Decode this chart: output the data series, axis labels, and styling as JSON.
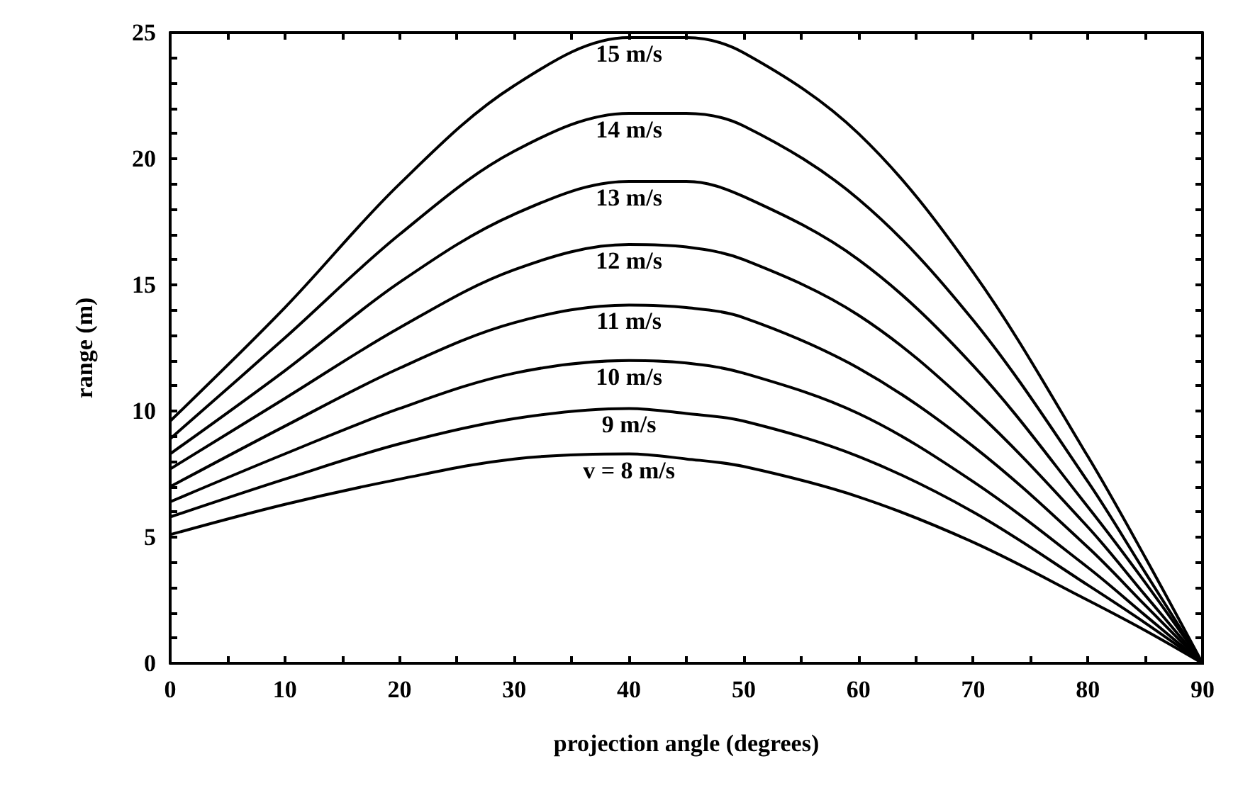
{
  "chart_data": {
    "type": "line",
    "xlabel": "projection angle (degrees)",
    "ylabel": "range (m)",
    "x": [
      0,
      10,
      20,
      30,
      40,
      45,
      50,
      60,
      70,
      80,
      85,
      90
    ],
    "series": [
      {
        "name": "v = 8 m/s",
        "color": "#000000",
        "values": [
          5.1,
          6.3,
          7.3,
          8.1,
          8.3,
          8.1,
          7.8,
          6.6,
          4.8,
          2.5,
          1.3,
          0
        ]
      },
      {
        "name": "9 m/s",
        "color": "#000000",
        "values": [
          5.8,
          7.3,
          8.7,
          9.7,
          10.1,
          9.9,
          9.6,
          8.2,
          6.0,
          3.1,
          1.6,
          0
        ]
      },
      {
        "name": "10 m/s",
        "color": "#000000",
        "values": [
          6.4,
          8.3,
          10.1,
          11.5,
          12.0,
          11.9,
          11.5,
          9.9,
          7.2,
          3.8,
          1.9,
          0
        ]
      },
      {
        "name": "11 m/s",
        "color": "#000000",
        "values": [
          7.0,
          9.4,
          11.7,
          13.5,
          14.2,
          14.1,
          13.7,
          11.7,
          8.6,
          4.6,
          2.3,
          0
        ]
      },
      {
        "name": "12 m/s",
        "color": "#000000",
        "values": [
          7.7,
          10.5,
          13.3,
          15.6,
          16.6,
          16.5,
          16.0,
          13.8,
          10.1,
          5.4,
          2.7,
          0
        ]
      },
      {
        "name": "13 m/s",
        "color": "#000000",
        "values": [
          8.3,
          11.6,
          15.1,
          17.8,
          19.1,
          19.1,
          18.5,
          16.0,
          11.8,
          6.2,
          3.2,
          0
        ]
      },
      {
        "name": "14 m/s",
        "color": "#000000",
        "values": [
          8.9,
          12.9,
          17.0,
          20.3,
          21.8,
          21.8,
          21.3,
          18.4,
          13.6,
          7.2,
          3.6,
          0
        ]
      },
      {
        "name": "15 m/s",
        "color": "#000000",
        "values": [
          9.6,
          14.1,
          19.0,
          22.9,
          24.8,
          24.8,
          24.2,
          21.0,
          15.5,
          8.2,
          4.2,
          0
        ]
      }
    ],
    "xlim": [
      0,
      90
    ],
    "ylim": [
      0,
      25
    ],
    "xticks": [
      0,
      {
        "value": 5,
        "label": null
      },
      10,
      {
        "value": 15,
        "label": null
      },
      20,
      {
        "value": 25,
        "label": null
      },
      30,
      {
        "value": 35,
        "label": null
      },
      40,
      {
        "value": 45,
        "label": null
      },
      50,
      {
        "value": 55,
        "label": null
      },
      60,
      {
        "value": 65,
        "label": null
      },
      70,
      {
        "value": 75,
        "label": null
      },
      80,
      {
        "value": 85,
        "label": null
      },
      90
    ],
    "yticks": [
      0,
      {
        "value": 1,
        "label": null
      },
      {
        "value": 2,
        "label": null
      },
      {
        "value": 3,
        "label": null
      },
      {
        "value": 4,
        "label": null
      },
      5,
      {
        "value": 6,
        "label": null
      },
      {
        "value": 7,
        "label": null
      },
      {
        "value": 8,
        "label": null
      },
      {
        "value": 9,
        "label": null
      },
      10,
      {
        "value": 11,
        "label": null
      },
      {
        "value": 12,
        "label": null
      },
      {
        "value": 13,
        "label": null
      },
      {
        "value": 14,
        "label": null
      },
      15,
      {
        "value": 16,
        "label": null
      },
      {
        "value": 17,
        "label": null
      },
      {
        "value": 18,
        "label": null
      },
      {
        "value": 19,
        "label": null
      },
      20,
      {
        "value": 21,
        "label": null
      },
      {
        "value": 22,
        "label": null
      },
      {
        "value": 23,
        "label": null
      },
      {
        "value": 24,
        "label": null
      },
      25
    ],
    "grid": false,
    "marker": "none",
    "line_style": "solid"
  }
}
